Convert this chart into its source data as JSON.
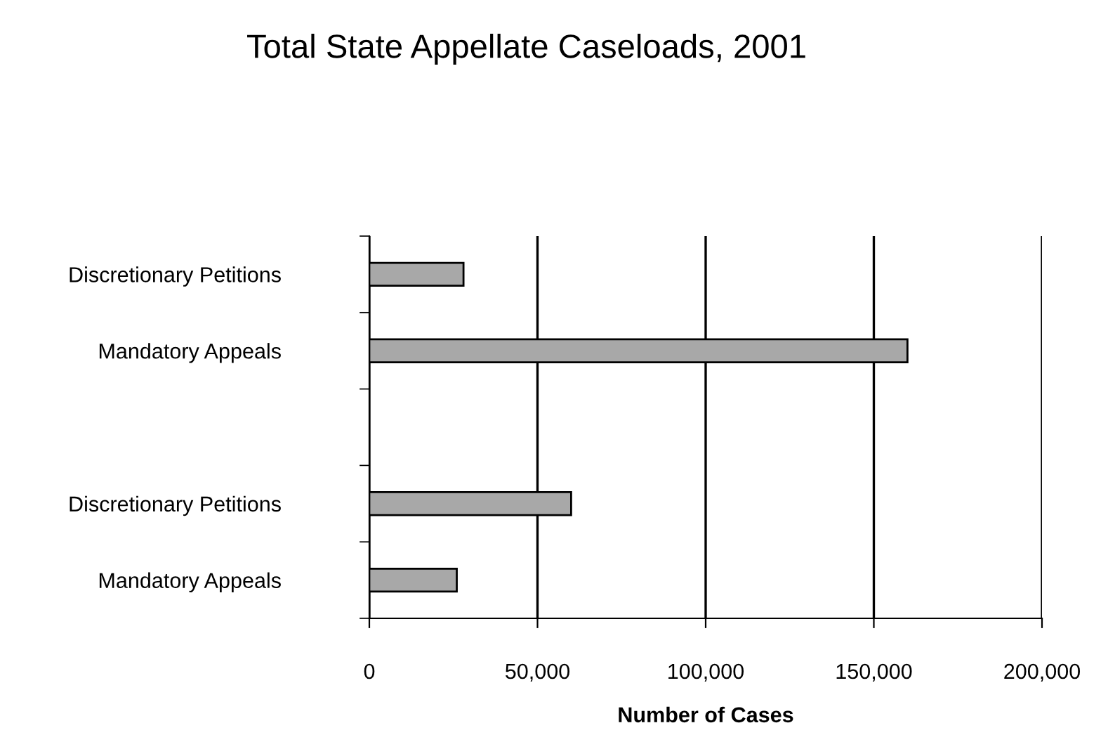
{
  "chart_data": {
    "type": "bar",
    "orientation": "horizontal",
    "title": "Total State Appellate Caseloads, 2001",
    "xlabel": "Number of Cases",
    "categories": [
      "Discretionary Petitions",
      "Mandatory Appeals",
      null,
      "Discretionary Petitions",
      "Mandatory Appeals"
    ],
    "values": [
      28000,
      160000,
      null,
      60000,
      26000
    ],
    "color": "#a8a8a8",
    "xlim": [
      0,
      200000
    ],
    "xticks": [
      {
        "value": 0,
        "label": "0"
      },
      {
        "value": 50000,
        "label": "50,000"
      },
      {
        "value": 100000,
        "label": "100,000"
      },
      {
        "value": 150000,
        "label": "150,000"
      },
      {
        "value": 200000,
        "label": "200,000"
      }
    ],
    "grid": "x",
    "legend": false
  }
}
